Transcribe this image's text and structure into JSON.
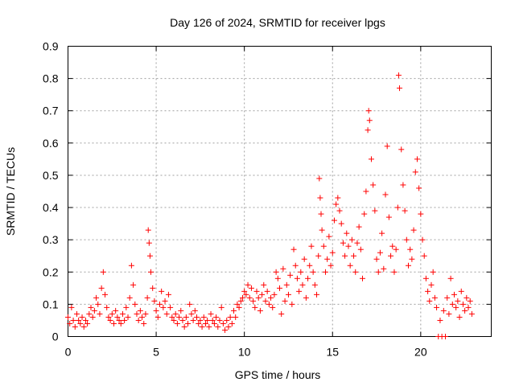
{
  "chart_data": {
    "type": "scatter",
    "title": "Day 126 of 2024, SRMTID for receiver lpgs",
    "xlabel": "GPS time / hours",
    "ylabel": "SRMTID / TECUs",
    "xlim": [
      0,
      24
    ],
    "ylim": [
      0,
      0.9
    ],
    "xticks": [
      0,
      5,
      10,
      15,
      20
    ],
    "yticks": [
      0,
      0.1,
      0.2,
      0.3,
      0.4,
      0.5,
      0.6,
      0.7,
      0.8,
      0.9
    ],
    "xtick_labels": [
      "0",
      "5",
      "10",
      "15",
      "20"
    ],
    "ytick_labels": [
      "0",
      "0.1",
      "0.2",
      "0.3",
      "0.4",
      "0.5",
      "0.6",
      "0.7",
      "0.8",
      "0.9"
    ],
    "grid": true,
    "marker": "+",
    "color": "#ff0000",
    "series": [
      {
        "name": "SRMTID",
        "points": [
          [
            0.0,
            0.06
          ],
          [
            0.1,
            0.04
          ],
          [
            0.2,
            0.09
          ],
          [
            0.3,
            0.05
          ],
          [
            0.4,
            0.03
          ],
          [
            0.5,
            0.07
          ],
          [
            0.6,
            0.05
          ],
          [
            0.7,
            0.04
          ],
          [
            0.8,
            0.06
          ],
          [
            0.9,
            0.03
          ],
          [
            1.0,
            0.05
          ],
          [
            1.1,
            0.04
          ],
          [
            1.2,
            0.07
          ],
          [
            1.3,
            0.09
          ],
          [
            1.4,
            0.06
          ],
          [
            1.5,
            0.08
          ],
          [
            1.6,
            0.12
          ],
          [
            1.7,
            0.1
          ],
          [
            1.8,
            0.07
          ],
          [
            1.9,
            0.15
          ],
          [
            2.0,
            0.2
          ],
          [
            2.1,
            0.13
          ],
          [
            2.2,
            0.09
          ],
          [
            2.3,
            0.06
          ],
          [
            2.4,
            0.05
          ],
          [
            2.5,
            0.07
          ],
          [
            2.6,
            0.04
          ],
          [
            2.7,
            0.08
          ],
          [
            2.8,
            0.06
          ],
          [
            2.9,
            0.05
          ],
          [
            3.0,
            0.04
          ],
          [
            3.1,
            0.07
          ],
          [
            3.2,
            0.05
          ],
          [
            3.3,
            0.09
          ],
          [
            3.4,
            0.06
          ],
          [
            3.5,
            0.12
          ],
          [
            3.6,
            0.22
          ],
          [
            3.7,
            0.16
          ],
          [
            3.8,
            0.1
          ],
          [
            3.9,
            0.07
          ],
          [
            4.0,
            0.05
          ],
          [
            4.1,
            0.08
          ],
          [
            4.2,
            0.06
          ],
          [
            4.3,
            0.04
          ],
          [
            4.4,
            0.07
          ],
          [
            4.5,
            0.12
          ],
          [
            4.55,
            0.33
          ],
          [
            4.6,
            0.29
          ],
          [
            4.65,
            0.25
          ],
          [
            4.7,
            0.2
          ],
          [
            4.8,
            0.15
          ],
          [
            4.9,
            0.11
          ],
          [
            5.0,
            0.08
          ],
          [
            5.1,
            0.06
          ],
          [
            5.2,
            0.1
          ],
          [
            5.3,
            0.14
          ],
          [
            5.4,
            0.09
          ],
          [
            5.5,
            0.11
          ],
          [
            5.6,
            0.07
          ],
          [
            5.7,
            0.13
          ],
          [
            5.8,
            0.09
          ],
          [
            5.9,
            0.06
          ],
          [
            6.0,
            0.05
          ],
          [
            6.1,
            0.07
          ],
          [
            6.2,
            0.04
          ],
          [
            6.3,
            0.06
          ],
          [
            6.4,
            0.08
          ],
          [
            6.5,
            0.05
          ],
          [
            6.6,
            0.03
          ],
          [
            6.7,
            0.06
          ],
          [
            6.8,
            0.04
          ],
          [
            6.9,
            0.1
          ],
          [
            7.0,
            0.07
          ],
          [
            7.1,
            0.05
          ],
          [
            7.2,
            0.08
          ],
          [
            7.3,
            0.06
          ],
          [
            7.4,
            0.04
          ],
          [
            7.5,
            0.05
          ],
          [
            7.6,
            0.03
          ],
          [
            7.7,
            0.06
          ],
          [
            7.8,
            0.04
          ],
          [
            7.9,
            0.05
          ],
          [
            8.0,
            0.03
          ],
          [
            8.1,
            0.07
          ],
          [
            8.2,
            0.05
          ],
          [
            8.3,
            0.04
          ],
          [
            8.4,
            0.06
          ],
          [
            8.5,
            0.03
          ],
          [
            8.6,
            0.05
          ],
          [
            8.7,
            0.09
          ],
          [
            8.8,
            0.04
          ],
          [
            8.9,
            0.02
          ],
          [
            9.0,
            0.05
          ],
          [
            9.1,
            0.03
          ],
          [
            9.2,
            0.06
          ],
          [
            9.3,
            0.04
          ],
          [
            9.4,
            0.08
          ],
          [
            9.5,
            0.06
          ],
          [
            9.6,
            0.1
          ],
          [
            9.7,
            0.09
          ],
          [
            9.8,
            0.11
          ],
          [
            9.9,
            0.12
          ],
          [
            10.0,
            0.14
          ],
          [
            10.1,
            0.13
          ],
          [
            10.2,
            0.16
          ],
          [
            10.3,
            0.12
          ],
          [
            10.4,
            0.15
          ],
          [
            10.5,
            0.11
          ],
          [
            10.6,
            0.09
          ],
          [
            10.7,
            0.14
          ],
          [
            10.8,
            0.12
          ],
          [
            10.9,
            0.08
          ],
          [
            11.0,
            0.13
          ],
          [
            11.1,
            0.16
          ],
          [
            11.2,
            0.11
          ],
          [
            11.3,
            0.14
          ],
          [
            11.4,
            0.1
          ],
          [
            11.5,
            0.12
          ],
          [
            11.6,
            0.09
          ],
          [
            11.7,
            0.13
          ],
          [
            11.8,
            0.2
          ],
          [
            11.9,
            0.18
          ],
          [
            12.0,
            0.15
          ],
          [
            12.1,
            0.07
          ],
          [
            12.2,
            0.21
          ],
          [
            12.3,
            0.11
          ],
          [
            12.4,
            0.16
          ],
          [
            12.5,
            0.13
          ],
          [
            12.6,
            0.19
          ],
          [
            12.7,
            0.1
          ],
          [
            12.8,
            0.27
          ],
          [
            12.9,
            0.22
          ],
          [
            13.0,
            0.18
          ],
          [
            13.1,
            0.14
          ],
          [
            13.2,
            0.2
          ],
          [
            13.3,
            0.16
          ],
          [
            13.4,
            0.24
          ],
          [
            13.5,
            0.12
          ],
          [
            13.6,
            0.18
          ],
          [
            13.7,
            0.22
          ],
          [
            13.8,
            0.28
          ],
          [
            13.9,
            0.2
          ],
          [
            14.0,
            0.16
          ],
          [
            14.1,
            0.13
          ],
          [
            14.2,
            0.25
          ],
          [
            14.25,
            0.49
          ],
          [
            14.3,
            0.43
          ],
          [
            14.35,
            0.38
          ],
          [
            14.4,
            0.33
          ],
          [
            14.5,
            0.28
          ],
          [
            14.6,
            0.2
          ],
          [
            14.7,
            0.24
          ],
          [
            14.8,
            0.31
          ],
          [
            14.9,
            0.22
          ],
          [
            15.0,
            0.26
          ],
          [
            15.1,
            0.36
          ],
          [
            15.2,
            0.41
          ],
          [
            15.3,
            0.43
          ],
          [
            15.4,
            0.39
          ],
          [
            15.5,
            0.35
          ],
          [
            15.6,
            0.29
          ],
          [
            15.7,
            0.25
          ],
          [
            15.8,
            0.32
          ],
          [
            15.9,
            0.28
          ],
          [
            16.0,
            0.22
          ],
          [
            16.1,
            0.3
          ],
          [
            16.2,
            0.25
          ],
          [
            16.3,
            0.2
          ],
          [
            16.4,
            0.29
          ],
          [
            16.5,
            0.34
          ],
          [
            16.6,
            0.27
          ],
          [
            16.7,
            0.18
          ],
          [
            16.8,
            0.38
          ],
          [
            16.9,
            0.45
          ],
          [
            17.0,
            0.64
          ],
          [
            17.05,
            0.7
          ],
          [
            17.1,
            0.67
          ],
          [
            17.2,
            0.55
          ],
          [
            17.3,
            0.47
          ],
          [
            17.4,
            0.39
          ],
          [
            17.5,
            0.24
          ],
          [
            17.6,
            0.2
          ],
          [
            17.7,
            0.26
          ],
          [
            17.8,
            0.32
          ],
          [
            17.9,
            0.21
          ],
          [
            18.0,
            0.44
          ],
          [
            18.1,
            0.59
          ],
          [
            18.2,
            0.37
          ],
          [
            18.3,
            0.25
          ],
          [
            18.4,
            0.28
          ],
          [
            18.5,
            0.2
          ],
          [
            18.6,
            0.27
          ],
          [
            18.7,
            0.4
          ],
          [
            18.75,
            0.81
          ],
          [
            18.8,
            0.77
          ],
          [
            18.9,
            0.58
          ],
          [
            19.0,
            0.47
          ],
          [
            19.1,
            0.39
          ],
          [
            19.2,
            0.3
          ],
          [
            19.3,
            0.22
          ],
          [
            19.4,
            0.27
          ],
          [
            19.5,
            0.24
          ],
          [
            19.6,
            0.33
          ],
          [
            19.7,
            0.51
          ],
          [
            19.8,
            0.55
          ],
          [
            19.9,
            0.46
          ],
          [
            20.0,
            0.38
          ],
          [
            20.1,
            0.3
          ],
          [
            20.2,
            0.25
          ],
          [
            20.3,
            0.18
          ],
          [
            20.4,
            0.14
          ],
          [
            20.5,
            0.11
          ],
          [
            20.6,
            0.16
          ],
          [
            20.7,
            0.2
          ],
          [
            20.8,
            0.12
          ],
          [
            20.9,
            0.09
          ],
          [
            21.0,
            0.0
          ],
          [
            21.1,
            0.05
          ],
          [
            21.2,
            0.0
          ],
          [
            21.3,
            0.08
          ],
          [
            21.4,
            0.0
          ],
          [
            21.5,
            0.12
          ],
          [
            21.6,
            0.07
          ],
          [
            21.7,
            0.18
          ],
          [
            21.8,
            0.1
          ],
          [
            21.9,
            0.13
          ],
          [
            22.0,
            0.09
          ],
          [
            22.1,
            0.11
          ],
          [
            22.2,
            0.06
          ],
          [
            22.3,
            0.14
          ],
          [
            22.4,
            0.1
          ],
          [
            22.5,
            0.08
          ],
          [
            22.6,
            0.12
          ],
          [
            22.7,
            0.09
          ],
          [
            22.8,
            0.11
          ],
          [
            22.9,
            0.07
          ]
        ]
      }
    ]
  }
}
